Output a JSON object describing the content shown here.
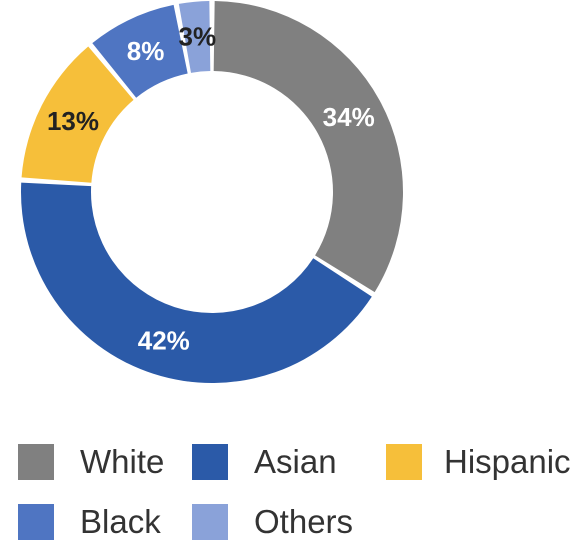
{
  "chart_data": {
    "type": "pie",
    "title": "",
    "slices": [
      {
        "name": "White",
        "value": 34,
        "label": "34%",
        "color": "#808080",
        "label_color": "#ffffff"
      },
      {
        "name": "Asian",
        "value": 42,
        "label": "42%",
        "color": "#2b5aa8",
        "label_color": "#ffffff"
      },
      {
        "name": "Hispanic",
        "value": 13,
        "label": "13%",
        "color": "#f6bf3a",
        "label_color": "#222222"
      },
      {
        "name": "Black",
        "value": 8,
        "label": "8%",
        "color": "#4f75c2",
        "label_color": "#ffffff"
      },
      {
        "name": "Others",
        "value": 3,
        "label": "3%",
        "color": "#8aa2d9",
        "label_color": "#222222"
      }
    ],
    "legend_position": "bottom",
    "legend": [
      "White",
      "Asian",
      "Hispanic",
      "Black",
      "Others"
    ]
  }
}
